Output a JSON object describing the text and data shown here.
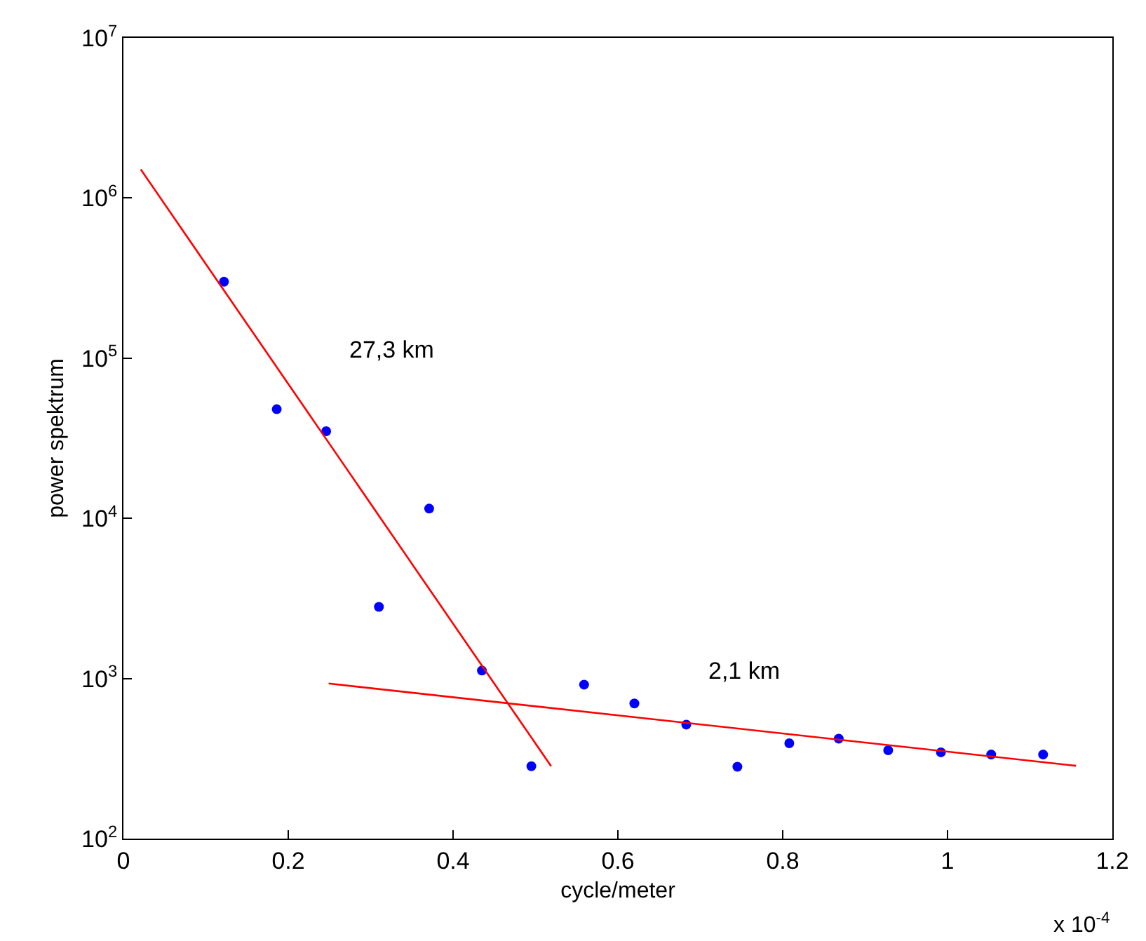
{
  "chart_data": {
    "type": "scatter",
    "xlabel": "cycle/meter",
    "ylabel": "power spektrum",
    "log": "y",
    "xlim": [
      0,
      1.2
    ],
    "xticks": [
      0,
      0.2,
      0.4,
      0.6,
      0.8,
      1,
      1.2
    ],
    "ylim": [
      100,
      10000000
    ],
    "yticks": [
      {
        "value": 100,
        "label": "10$^{2}$"
      },
      {
        "value": 1000,
        "label": "10$^{3}$"
      },
      {
        "value": 10000,
        "label": "10$^{4}$"
      },
      {
        "value": 100000,
        "label": "10$^{5}$"
      },
      {
        "value": 1000000,
        "label": "10$^{6}$"
      },
      {
        "value": 10000000,
        "label": "10$^{7}$"
      }
    ],
    "series": [
      {
        "marker": "circle",
        "color": "#0000ff",
        "x": [
          0.122,
          0.186,
          0.246,
          0.31,
          0.371,
          0.435,
          0.495,
          0.559,
          0.62,
          0.683,
          0.745,
          0.808,
          0.868,
          0.928,
          0.992,
          1.053,
          1.116
        ],
        "values": [
          300000,
          48000,
          35000,
          2800,
          11500,
          1120,
          283,
          915,
          698,
          515,
          281,
          394,
          421,
          356,
          346,
          335,
          335
        ]
      },
      {
        "type": "line",
        "color": "#ff0000",
        "line_style": "solid",
        "marker": "none",
        "x": [
          0.021,
          0.519
        ],
        "values": [
          1510000,
          283
        ]
      },
      {
        "type": "line",
        "color": "#ff0000",
        "line_style": "solid",
        "marker": "none",
        "x": [
          0.249,
          1.156
        ],
        "values": [
          930,
          285
        ]
      }
    ],
    "annotations": [
      "27,3 km",
      "2,1 km",
      "x 10$^{-4}$"
    ]
  }
}
